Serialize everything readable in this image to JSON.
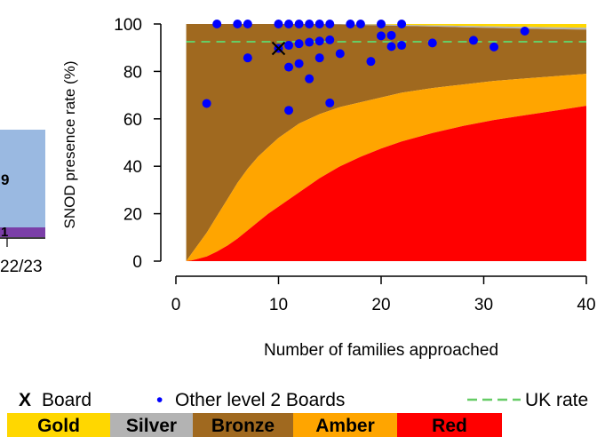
{
  "chart_data": {
    "type": "area",
    "title": "",
    "xlabel": "Number of families approached",
    "ylabel": "SNOD presence rate (%)",
    "xlim": [
      1,
      40
    ],
    "ylim": [
      0,
      100
    ],
    "x_ticks": [
      0,
      10,
      20,
      30,
      40
    ],
    "y_ticks": [
      0,
      20,
      40,
      60,
      80,
      100
    ],
    "grid": false,
    "uk_rate": 92.5,
    "bands": [
      {
        "name": "Gold",
        "color": "#FFD700"
      },
      {
        "name": "Silver",
        "color": "#B3B3B3"
      },
      {
        "name": "Bronze",
        "color": "#A0691F"
      },
      {
        "name": "Amber",
        "color": "#FFA500"
      },
      {
        "name": "Red",
        "color": "#FF0000"
      }
    ],
    "band_boundaries": {
      "x": [
        1,
        1.5,
        2,
        3,
        4,
        5,
        6,
        7,
        8,
        9,
        10,
        12,
        14,
        16,
        18,
        20,
        22,
        25,
        28,
        31,
        34,
        37,
        40
      ],
      "gold_silver": [
        100,
        100,
        100,
        100,
        100,
        100,
        100,
        100,
        100,
        100,
        100,
        100,
        100,
        100,
        99.9,
        99.8,
        99.6,
        99.4,
        99.2,
        99.0,
        98.8,
        98.6,
        98.4
      ],
      "silver_bronze": [
        100,
        100,
        100,
        100,
        100,
        100,
        100,
        100,
        100,
        100,
        100,
        100,
        100,
        99.8,
        99.6,
        99.4,
        99.2,
        98.9,
        98.6,
        98.3,
        98.0,
        97.8,
        97.6
      ],
      "bronze_amber": [
        0,
        3,
        6,
        12,
        19,
        26,
        33,
        39,
        44,
        48,
        52,
        58,
        62,
        65,
        67,
        69,
        71,
        73,
        74.5,
        76,
        77,
        78,
        79
      ],
      "amber_red": [
        0,
        0.3,
        0.8,
        2,
        4,
        6.5,
        9.5,
        13,
        16.5,
        20,
        23,
        29,
        35,
        40,
        44,
        47.5,
        50.5,
        54,
        57,
        59.5,
        61.5,
        63.5,
        65.5
      ]
    },
    "board": {
      "x": 10,
      "y": 89.7
    },
    "other_boards": [
      {
        "x": 3,
        "y": 66.5
      },
      {
        "x": 4,
        "y": 100
      },
      {
        "x": 6,
        "y": 100
      },
      {
        "x": 7,
        "y": 100
      },
      {
        "x": 7,
        "y": 85.7
      },
      {
        "x": 10,
        "y": 100
      },
      {
        "x": 11,
        "y": 100
      },
      {
        "x": 12,
        "y": 100
      },
      {
        "x": 11,
        "y": 91
      },
      {
        "x": 12,
        "y": 91.7
      },
      {
        "x": 13,
        "y": 92.3
      },
      {
        "x": 14,
        "y": 92.8
      },
      {
        "x": 15,
        "y": 93.3
      },
      {
        "x": 13,
        "y": 100
      },
      {
        "x": 14,
        "y": 100
      },
      {
        "x": 15,
        "y": 100
      },
      {
        "x": 17,
        "y": 100
      },
      {
        "x": 18,
        "y": 100
      },
      {
        "x": 20,
        "y": 100
      },
      {
        "x": 22,
        "y": 100
      },
      {
        "x": 20,
        "y": 95
      },
      {
        "x": 21,
        "y": 95.2
      },
      {
        "x": 21,
        "y": 90.5
      },
      {
        "x": 22,
        "y": 91
      },
      {
        "x": 25,
        "y": 92
      },
      {
        "x": 29,
        "y": 93.1
      },
      {
        "x": 31,
        "y": 90.3
      },
      {
        "x": 34,
        "y": 97
      },
      {
        "x": 11,
        "y": 81.8
      },
      {
        "x": 12,
        "y": 83.3
      },
      {
        "x": 14,
        "y": 85.7
      },
      {
        "x": 16,
        "y": 87.5
      },
      {
        "x": 19,
        "y": 84.2
      },
      {
        "x": 13,
        "y": 76.9
      },
      {
        "x": 11,
        "y": 63.6
      },
      {
        "x": 15,
        "y": 66.7
      }
    ]
  },
  "legend": {
    "board_marker": "X",
    "board_label": "Board",
    "other_marker": "•",
    "other_label": "Other level 2 Boards",
    "uk_label": "UK rate",
    "board_color": "#000000",
    "other_color": "#0000FF",
    "uk_color": "#66CC66"
  },
  "left_panel": {
    "value_top": "9",
    "value_bottom": "1",
    "tick_label": "22/23",
    "colors": {
      "main": "#9AB9E1",
      "strip": "#7B3FA8"
    }
  }
}
